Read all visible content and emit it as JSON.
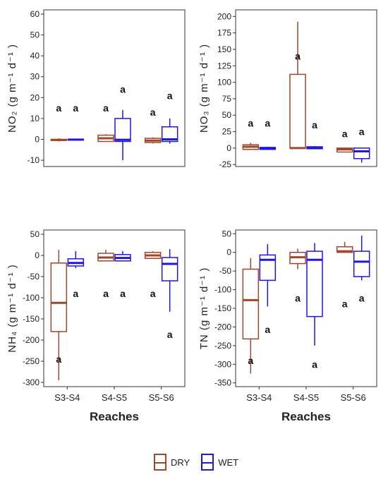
{
  "colors": {
    "dry": "#a0462a",
    "wet": "#1f16e0",
    "dry_fill": "#ffffff",
    "text": "#222222",
    "axis": "#333333"
  },
  "legend": {
    "dry": "DRY",
    "wet": "WET"
  },
  "chart_data": [
    {
      "type": "box",
      "panel": "NO2",
      "ylabel": "NO₂ (g m⁻¹ d⁻¹ )",
      "xlabel": "",
      "ylim": [
        -13,
        62
      ],
      "yticks": [
        -10,
        0,
        10,
        20,
        30,
        40,
        50,
        60
      ],
      "categories": [
        "S3-S4",
        "S4-S5",
        "S5-S6"
      ],
      "show_xticks": false,
      "series": [
        {
          "name": "DRY",
          "boxes": [
            {
              "min": -1,
              "q1": -0.5,
              "median": -0.3,
              "q3": 0,
              "max": 0.5
            },
            {
              "min": -1,
              "q1": -1,
              "median": 0.5,
              "q3": 2,
              "max": 2.5
            },
            {
              "min": -2,
              "q1": -1.5,
              "median": -0.6,
              "q3": 0.5,
              "max": 1
            }
          ]
        },
        {
          "name": "WET",
          "boxes": [
            {
              "min": -0.5,
              "q1": -0.3,
              "median": -0.1,
              "q3": 0,
              "max": 0.2
            },
            {
              "min": -10,
              "q1": -1,
              "median": -0.2,
              "q3": 10,
              "max": 14
            },
            {
              "min": -2,
              "q1": -1,
              "median": 0,
              "q3": 6,
              "max": 10
            }
          ]
        }
      ],
      "annotations": [
        {
          "text": "a",
          "cat": 0,
          "series": 0,
          "y": 15
        },
        {
          "text": "a",
          "cat": 0,
          "series": 1,
          "y": 15
        },
        {
          "text": "a",
          "cat": 1,
          "series": 0,
          "y": 15
        },
        {
          "text": "a",
          "cat": 1,
          "series": 1,
          "y": 24
        },
        {
          "text": "a",
          "cat": 2,
          "series": 0,
          "y": 13
        },
        {
          "text": "a",
          "cat": 2,
          "series": 1,
          "y": 21
        }
      ]
    },
    {
      "type": "box",
      "panel": "NO3",
      "ylabel": "NO₃ (g m⁻¹ d⁻¹ )",
      "xlabel": "",
      "ylim": [
        -28,
        210
      ],
      "yticks": [
        -25,
        0,
        25,
        50,
        75,
        100,
        125,
        150,
        175,
        200
      ],
      "categories": [
        "S3-S4",
        "S4-S5",
        "S5-S6"
      ],
      "show_xticks": false,
      "series": [
        {
          "name": "DRY",
          "boxes": [
            {
              "min": -2,
              "q1": -2,
              "median": 2,
              "q3": 5,
              "max": 8
            },
            {
              "min": 0,
              "q1": 0,
              "median": 0,
              "q3": 112,
              "max": 192
            },
            {
              "min": -6,
              "q1": -6,
              "median": -2,
              "q3": 0,
              "max": 0
            }
          ]
        },
        {
          "name": "WET",
          "boxes": [
            {
              "min": -2,
              "q1": -2,
              "median": 0,
              "q3": 1,
              "max": 2
            },
            {
              "min": -1,
              "q1": -1,
              "median": 0,
              "q3": 2,
              "max": 3
            },
            {
              "min": -22,
              "q1": -16,
              "median": -5,
              "q3": 0,
              "max": 0
            }
          ]
        }
      ],
      "annotations": [
        {
          "text": "a",
          "cat": 0,
          "series": 0,
          "y": 38
        },
        {
          "text": "a",
          "cat": 0,
          "series": 1,
          "y": 38
        },
        {
          "text": "a",
          "cat": 1,
          "series": 0,
          "y": 140
        },
        {
          "text": "a",
          "cat": 1,
          "series": 1,
          "y": 35
        },
        {
          "text": "a",
          "cat": 2,
          "series": 0,
          "y": 22
        },
        {
          "text": "a",
          "cat": 2,
          "series": 1,
          "y": 25
        }
      ]
    },
    {
      "type": "box",
      "panel": "NH4",
      "ylabel": "NH₄ (g m⁻¹ d⁻¹ )",
      "xlabel": "Reaches",
      "ylim": [
        -310,
        60
      ],
      "yticks": [
        -300,
        -250,
        -200,
        -150,
        -100,
        -50,
        0,
        50
      ],
      "categories": [
        "S3-S4",
        "S4-S5",
        "S5-S6"
      ],
      "show_xticks": true,
      "series": [
        {
          "name": "DRY",
          "boxes": [
            {
              "min": -295,
              "q1": -180,
              "median": -112,
              "q3": -18,
              "max": 13
            },
            {
              "min": -13,
              "q1": -13,
              "median": -5,
              "q3": 5,
              "max": 13
            },
            {
              "min": -7,
              "q1": -7,
              "median": 0,
              "q3": 7,
              "max": 10
            }
          ]
        },
        {
          "name": "WET",
          "boxes": [
            {
              "min": -30,
              "q1": -25,
              "median": -18,
              "q3": -8,
              "max": 10
            },
            {
              "min": -13,
              "q1": -13,
              "median": -6,
              "q3": 2,
              "max": 10
            },
            {
              "min": -133,
              "q1": -60,
              "median": -20,
              "q3": -5,
              "max": 15
            }
          ]
        }
      ],
      "annotations": [
        {
          "text": "a",
          "cat": 0,
          "series": 0,
          "y": -245
        },
        {
          "text": "a",
          "cat": 0,
          "series": 1,
          "y": -90
        },
        {
          "text": "a",
          "cat": 1,
          "series": 0,
          "y": -90
        },
        {
          "text": "a",
          "cat": 1,
          "series": 1,
          "y": -90
        },
        {
          "text": "a",
          "cat": 2,
          "series": 0,
          "y": -90
        },
        {
          "text": "a",
          "cat": 2,
          "series": 1,
          "y": -187
        }
      ]
    },
    {
      "type": "box",
      "panel": "TN",
      "ylabel": "TN (g m⁻¹ d⁻¹ )",
      "xlabel": "Reaches",
      "ylim": [
        -360,
        60
      ],
      "yticks": [
        -350,
        -300,
        -250,
        -200,
        -150,
        -100,
        -50,
        0,
        50
      ],
      "categories": [
        "S3-S4",
        "S4-S5",
        "S5-S6"
      ],
      "show_xticks": true,
      "series": [
        {
          "name": "DRY",
          "boxes": [
            {
              "min": -325,
              "q1": -232,
              "median": -128,
              "q3": -45,
              "max": -15
            },
            {
              "min": -45,
              "q1": -30,
              "median": -13,
              "q3": 0,
              "max": 10
            },
            {
              "min": 0,
              "q1": 0,
              "median": 3,
              "q3": 15,
              "max": 28
            }
          ]
        },
        {
          "name": "WET",
          "boxes": [
            {
              "min": -145,
              "q1": -75,
              "median": -20,
              "q3": -7,
              "max": 22
            },
            {
              "min": -250,
              "q1": -172,
              "median": -20,
              "q3": 3,
              "max": 25
            },
            {
              "min": -75,
              "q1": -65,
              "median": -25,
              "q3": 3,
              "max": 45
            }
          ]
        }
      ],
      "annotations": [
        {
          "text": "a",
          "cat": 0,
          "series": 0,
          "y": -290
        },
        {
          "text": "a",
          "cat": 0,
          "series": 1,
          "y": -207
        },
        {
          "text": "a",
          "cat": 1,
          "series": 0,
          "y": -123
        },
        {
          "text": "a",
          "cat": 1,
          "series": 1,
          "y": -300
        },
        {
          "text": "a",
          "cat": 2,
          "series": 0,
          "y": -138
        },
        {
          "text": "a",
          "cat": 2,
          "series": 1,
          "y": -123
        }
      ]
    }
  ]
}
